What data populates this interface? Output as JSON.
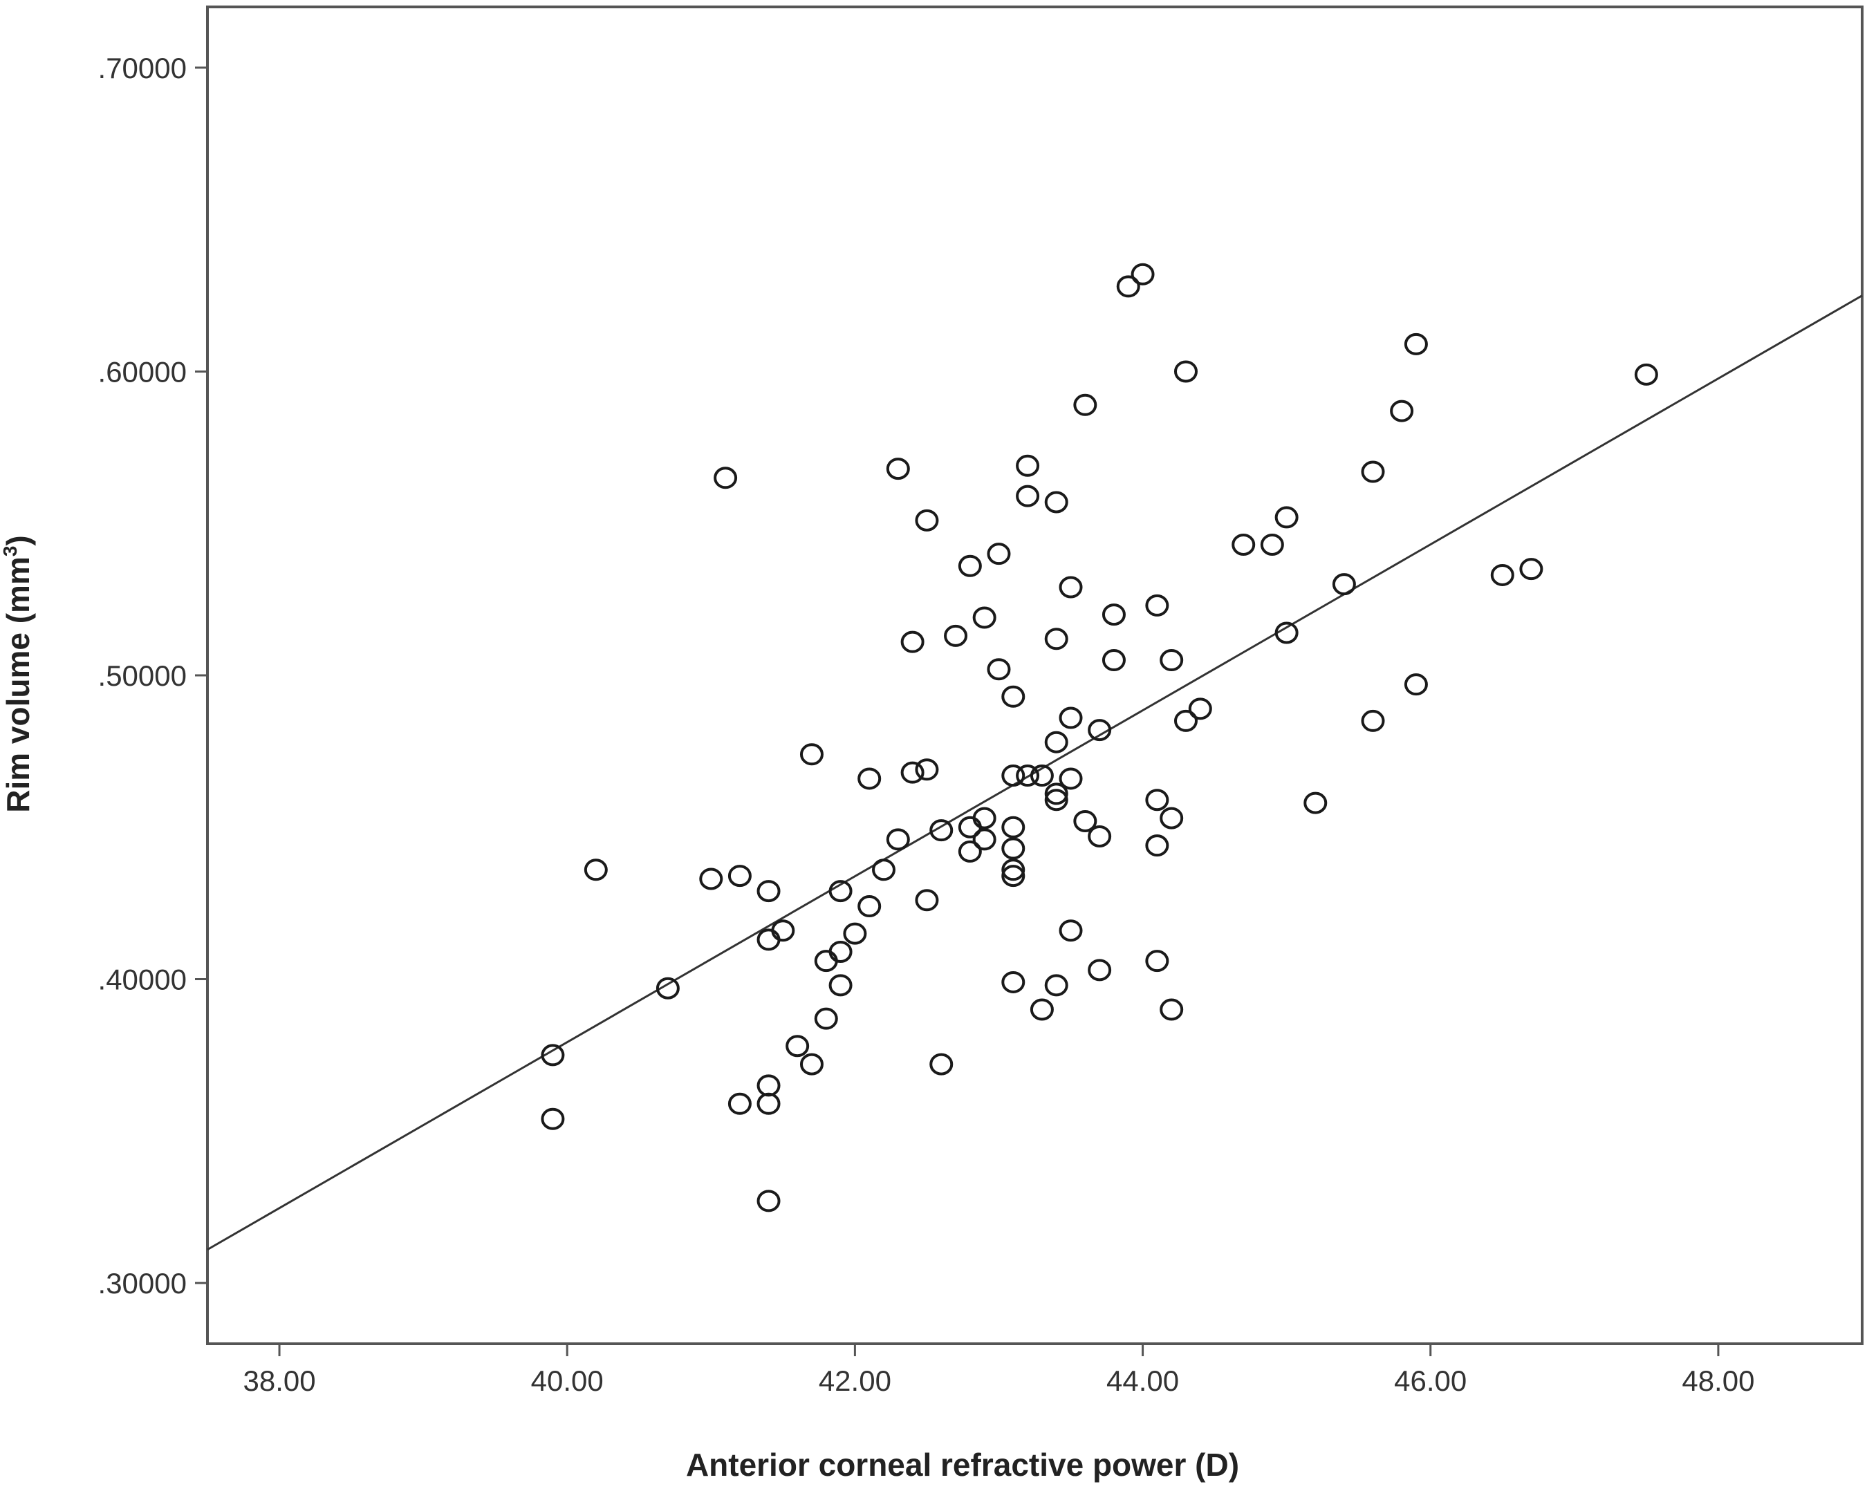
{
  "chart_data": {
    "type": "scatter",
    "xlabel": "Anterior corneal refractive power (D)",
    "ylabel": "Rim volume (mm",
    "ylabel_sup": "3",
    "ylabel_close": ")",
    "xlim": [
      37.5,
      49.0
    ],
    "ylim": [
      0.28,
      0.72
    ],
    "x_ticks": [
      38,
      40,
      42,
      44,
      46,
      48
    ],
    "x_tick_labels": [
      "38.00",
      "40.00",
      "42.00",
      "44.00",
      "46.00",
      "48.00"
    ],
    "y_ticks": [
      0.3,
      0.4,
      0.5,
      0.6,
      0.7
    ],
    "y_tick_labels": [
      ".30000",
      ".40000",
      ".50000",
      ".60000",
      ".70000"
    ],
    "grid": false,
    "marker": "open-circle",
    "fit_line": {
      "x": [
        37.5,
        49.0
      ],
      "y": [
        0.311,
        0.625
      ]
    },
    "points": [
      [
        39.9,
        0.375
      ],
      [
        39.9,
        0.354
      ],
      [
        40.2,
        0.436
      ],
      [
        40.7,
        0.397
      ],
      [
        41.0,
        0.433
      ],
      [
        41.1,
        0.565
      ],
      [
        41.2,
        0.434
      ],
      [
        41.2,
        0.359
      ],
      [
        41.4,
        0.429
      ],
      [
        41.4,
        0.413
      ],
      [
        41.4,
        0.365
      ],
      [
        41.4,
        0.359
      ],
      [
        41.4,
        0.327
      ],
      [
        41.5,
        0.416
      ],
      [
        41.6,
        0.378
      ],
      [
        41.7,
        0.474
      ],
      [
        41.7,
        0.372
      ],
      [
        41.8,
        0.406
      ],
      [
        41.8,
        0.387
      ],
      [
        41.9,
        0.429
      ],
      [
        41.9,
        0.409
      ],
      [
        41.9,
        0.398
      ],
      [
        42.0,
        0.415
      ],
      [
        42.1,
        0.466
      ],
      [
        42.1,
        0.424
      ],
      [
        42.2,
        0.436
      ],
      [
        42.3,
        0.568
      ],
      [
        42.3,
        0.446
      ],
      [
        42.4,
        0.511
      ],
      [
        42.4,
        0.468
      ],
      [
        42.5,
        0.551
      ],
      [
        42.5,
        0.469
      ],
      [
        42.5,
        0.426
      ],
      [
        42.6,
        0.449
      ],
      [
        42.6,
        0.372
      ],
      [
        42.7,
        0.513
      ],
      [
        42.8,
        0.536
      ],
      [
        42.8,
        0.45
      ],
      [
        42.8,
        0.442
      ],
      [
        42.9,
        0.519
      ],
      [
        42.9,
        0.453
      ],
      [
        42.9,
        0.446
      ],
      [
        43.0,
        0.54
      ],
      [
        43.0,
        0.502
      ],
      [
        43.1,
        0.493
      ],
      [
        43.1,
        0.467
      ],
      [
        43.1,
        0.45
      ],
      [
        43.1,
        0.443
      ],
      [
        43.1,
        0.436
      ],
      [
        43.1,
        0.434
      ],
      [
        43.1,
        0.399
      ],
      [
        43.2,
        0.569
      ],
      [
        43.2,
        0.559
      ],
      [
        43.2,
        0.467
      ],
      [
        43.3,
        0.467
      ],
      [
        43.3,
        0.39
      ],
      [
        43.4,
        0.557
      ],
      [
        43.4,
        0.512
      ],
      [
        43.4,
        0.478
      ],
      [
        43.4,
        0.461
      ],
      [
        43.4,
        0.459
      ],
      [
        43.4,
        0.398
      ],
      [
        43.5,
        0.529
      ],
      [
        43.5,
        0.486
      ],
      [
        43.5,
        0.466
      ],
      [
        43.5,
        0.416
      ],
      [
        43.6,
        0.589
      ],
      [
        43.6,
        0.452
      ],
      [
        43.7,
        0.482
      ],
      [
        43.7,
        0.447
      ],
      [
        43.7,
        0.403
      ],
      [
        43.8,
        0.52
      ],
      [
        43.8,
        0.505
      ],
      [
        43.9,
        0.628
      ],
      [
        44.0,
        0.632
      ],
      [
        44.1,
        0.523
      ],
      [
        44.1,
        0.459
      ],
      [
        44.1,
        0.444
      ],
      [
        44.1,
        0.406
      ],
      [
        44.2,
        0.505
      ],
      [
        44.2,
        0.453
      ],
      [
        44.2,
        0.39
      ],
      [
        44.3,
        0.6
      ],
      [
        44.3,
        0.485
      ],
      [
        44.4,
        0.489
      ],
      [
        44.7,
        0.543
      ],
      [
        44.9,
        0.543
      ],
      [
        45.0,
        0.552
      ],
      [
        45.0,
        0.514
      ],
      [
        45.2,
        0.458
      ],
      [
        45.4,
        0.53
      ],
      [
        45.6,
        0.567
      ],
      [
        45.6,
        0.485
      ],
      [
        45.8,
        0.587
      ],
      [
        45.9,
        0.609
      ],
      [
        45.9,
        0.497
      ],
      [
        46.5,
        0.533
      ],
      [
        46.7,
        0.535
      ],
      [
        47.5,
        0.599
      ]
    ]
  }
}
